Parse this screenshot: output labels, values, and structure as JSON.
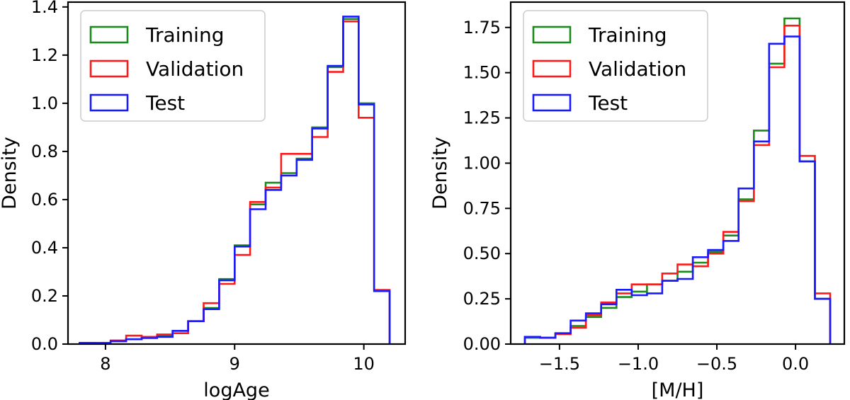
{
  "chart_data": [
    {
      "type": "histogram",
      "xlabel": "logAge",
      "ylabel": "Density",
      "xlim": [
        7.71,
        10.32
      ],
      "ylim": [
        0,
        1.42
      ],
      "xticks": [
        8,
        9,
        10
      ],
      "xtick_labels": [
        "8",
        "9",
        "10"
      ],
      "yticks": [
        0.0,
        0.2,
        0.4,
        0.6,
        0.8,
        1.0,
        1.2,
        1.4
      ],
      "ytick_labels": [
        "0.0",
        "0.2",
        "0.4",
        "0.6",
        "0.8",
        "1.0",
        "1.2",
        "1.4"
      ],
      "legend_position": "top-left",
      "bin_edges": [
        7.8,
        7.92,
        8.04,
        8.16,
        8.28,
        8.4,
        8.52,
        8.64,
        8.76,
        8.88,
        9.0,
        9.12,
        9.24,
        9.36,
        9.48,
        9.6,
        9.72,
        9.84,
        9.96,
        10.08,
        10.2
      ],
      "series": [
        {
          "name": "Training",
          "color": "#1a8a1a",
          "values": [
            0.005,
            0.005,
            0.012,
            0.02,
            0.03,
            0.035,
            0.055,
            0.095,
            0.15,
            0.27,
            0.41,
            0.58,
            0.67,
            0.71,
            0.77,
            0.9,
            1.15,
            1.35,
            1.0,
            0.22
          ]
        },
        {
          "name": "Validation",
          "color": "#ff1a1a",
          "values": [
            0.004,
            0.004,
            0.015,
            0.035,
            0.03,
            0.04,
            0.045,
            0.095,
            0.17,
            0.25,
            0.37,
            0.59,
            0.65,
            0.79,
            0.79,
            0.86,
            1.13,
            1.34,
            0.94,
            0.225
          ]
        },
        {
          "name": "Test",
          "color": "#1a1aff",
          "values": [
            0.005,
            0.004,
            0.012,
            0.02,
            0.025,
            0.03,
            0.055,
            0.095,
            0.145,
            0.265,
            0.405,
            0.56,
            0.64,
            0.7,
            0.765,
            0.895,
            1.155,
            1.36,
            0.995,
            0.22
          ]
        }
      ]
    },
    {
      "type": "histogram",
      "xlabel": "[M/H]",
      "ylabel": "Density",
      "xlim": [
        -1.81,
        0.31
      ],
      "ylim": [
        0,
        1.89
      ],
      "xticks": [
        -1.5,
        -1.0,
        -0.5,
        0.0
      ],
      "xtick_labels": [
        "−1.5",
        "−1.0",
        "−0.5",
        "0.0"
      ],
      "yticks": [
        0.0,
        0.25,
        0.5,
        0.75,
        1.0,
        1.25,
        1.5,
        1.75
      ],
      "ytick_labels": [
        "0.00",
        "0.25",
        "0.50",
        "0.75",
        "1.00",
        "1.25",
        "1.50",
        "1.75"
      ],
      "legend_position": "top-left",
      "bin_edges": [
        -1.72,
        -1.623,
        -1.526,
        -1.429,
        -1.332,
        -1.235,
        -1.138,
        -1.041,
        -0.944,
        -0.847,
        -0.75,
        -0.653,
        -0.556,
        -0.459,
        -0.362,
        -0.265,
        -0.168,
        -0.071,
        0.026,
        0.123,
        0.22
      ],
      "series": [
        {
          "name": "Training",
          "color": "#1a8a1a",
          "values": [
            0.035,
            0.035,
            0.06,
            0.1,
            0.15,
            0.2,
            0.26,
            0.29,
            0.33,
            0.35,
            0.4,
            0.45,
            0.51,
            0.6,
            0.8,
            1.18,
            1.55,
            1.8,
            1.01,
            0.25
          ]
        },
        {
          "name": "Validation",
          "color": "#ff1a1a",
          "values": [
            0.04,
            0.035,
            0.055,
            0.09,
            0.16,
            0.23,
            0.28,
            0.33,
            0.33,
            0.39,
            0.44,
            0.43,
            0.5,
            0.62,
            0.79,
            1.1,
            1.53,
            1.76,
            1.04,
            0.28
          ]
        },
        {
          "name": "Test",
          "color": "#1a1aff",
          "values": [
            0.04,
            0.035,
            0.06,
            0.13,
            0.17,
            0.22,
            0.3,
            0.27,
            0.28,
            0.35,
            0.36,
            0.48,
            0.52,
            0.57,
            0.86,
            1.12,
            1.66,
            1.7,
            1.01,
            0.25
          ]
        }
      ]
    }
  ]
}
